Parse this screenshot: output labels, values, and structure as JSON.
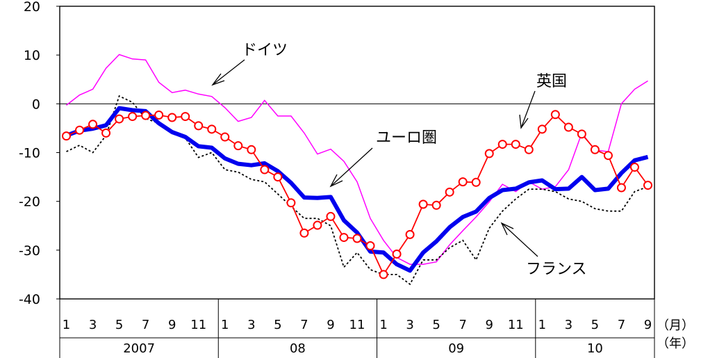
{
  "chart_data": {
    "type": "line",
    "ylim": [
      -40,
      20
    ],
    "yticks": [
      20,
      10,
      0,
      -10,
      -20,
      -30,
      -40
    ],
    "month_tick_labels": [
      "1",
      "3",
      "5",
      "7",
      "9",
      "11",
      "1",
      "3",
      "5",
      "7",
      "9",
      "11",
      "1",
      "3",
      "5",
      "7",
      "9",
      "11",
      "1",
      "3",
      "5",
      "7",
      "9"
    ],
    "year_labels": [
      "2007",
      "08",
      "09",
      "10"
    ],
    "month_unit": "（月）",
    "year_unit": "（年）",
    "annotations": {
      "germany": "ドイツ",
      "uk": "英国",
      "eurozone": "ユーロ圏",
      "france": "フランス"
    },
    "x": [
      "2007-01",
      "2007-02",
      "2007-03",
      "2007-04",
      "2007-05",
      "2007-06",
      "2007-07",
      "2007-08",
      "2007-09",
      "2007-10",
      "2007-11",
      "2007-12",
      "2008-01",
      "2008-02",
      "2008-03",
      "2008-04",
      "2008-05",
      "2008-06",
      "2008-07",
      "2008-08",
      "2008-09",
      "2008-10",
      "2008-11",
      "2008-12",
      "2009-01",
      "2009-02",
      "2009-03",
      "2009-04",
      "2009-05",
      "2009-06",
      "2009-07",
      "2009-08",
      "2009-09",
      "2009-10",
      "2009-11",
      "2009-12",
      "2010-01",
      "2010-02",
      "2010-03",
      "2010-04",
      "2010-05",
      "2010-06",
      "2010-07",
      "2010-08",
      "2010-09"
    ],
    "series": [
      {
        "key": "germany",
        "color": "#ff00ff",
        "style": "thin",
        "values": [
          -0.3,
          1.8,
          3.0,
          7.3,
          10.1,
          9.2,
          9.0,
          4.4,
          2.3,
          2.8,
          2.0,
          1.5,
          -0.8,
          -3.6,
          -2.8,
          0.7,
          -2.5,
          -2.5,
          -6.0,
          -10.3,
          -9.3,
          -11.8,
          -16.0,
          -23.5,
          -28.0,
          -31.5,
          -32.9,
          -32.9,
          -32.4,
          -28.9,
          -26.0,
          -23.2,
          -20.1,
          -16.5,
          -18.0,
          -16.0,
          -17.5,
          -17.0,
          -13.5,
          -6.0,
          -9.5,
          -9.8,
          0.0,
          3.0,
          4.7
        ]
      },
      {
        "key": "france",
        "color": "#000000",
        "style": "dotted",
        "values": [
          -9.8,
          -8.5,
          -10.0,
          -6.5,
          1.6,
          0.3,
          -3.0,
          -4.0,
          -6.0,
          -7.0,
          -11.0,
          -10.0,
          -13.5,
          -14.0,
          -15.5,
          -16.0,
          -18.5,
          -21.0,
          -23.5,
          -23.5,
          -25.0,
          -33.5,
          -30.5,
          -34.0,
          -35.0,
          -35.0,
          -37.0,
          -32.0,
          -32.0,
          -29.5,
          -28.0,
          -32.0,
          -25.5,
          -22.0,
          -19.5,
          -17.5,
          -17.5,
          -18.0,
          -19.5,
          -20.0,
          -21.5,
          -22.0,
          -22.0,
          -18.0,
          -17.0
        ]
      },
      {
        "key": "eurozone",
        "color": "#0000ee",
        "style": "thick",
        "values": [
          -6.5,
          -5.5,
          -5.1,
          -4.4,
          -0.9,
          -1.3,
          -1.5,
          -4.0,
          -5.8,
          -6.8,
          -8.7,
          -9.0,
          -11.2,
          -12.3,
          -12.6,
          -12.2,
          -13.8,
          -16.2,
          -19.2,
          -19.3,
          -19.1,
          -23.9,
          -26.4,
          -30.3,
          -30.5,
          -32.9,
          -34.2,
          -30.5,
          -28.2,
          -25.3,
          -23.2,
          -22.1,
          -19.3,
          -17.7,
          -17.4,
          -16.1,
          -15.7,
          -17.5,
          -17.4,
          -15.0,
          -17.7,
          -17.4,
          -14.2,
          -11.6,
          -10.9
        ]
      },
      {
        "key": "uk",
        "color": "#ff0000",
        "style": "marker",
        "values": [
          -6.6,
          -5.4,
          -4.2,
          -6.0,
          -3.1,
          -2.6,
          -2.4,
          -2.3,
          -2.8,
          -2.6,
          -4.5,
          -5.2,
          -6.8,
          -8.6,
          -9.4,
          -13.5,
          -15.0,
          -20.3,
          -26.5,
          -24.9,
          -23.1,
          -27.4,
          -27.6,
          -29.1,
          -35.0,
          -30.8,
          -26.8,
          -20.6,
          -20.8,
          -18.1,
          -16.0,
          -16.1,
          -10.2,
          -8.3,
          -8.3,
          -9.4,
          -5.2,
          -2.2,
          -4.8,
          -6.2,
          -9.4,
          -10.6,
          -17.2,
          -13.0,
          -16.7
        ]
      }
    ]
  }
}
